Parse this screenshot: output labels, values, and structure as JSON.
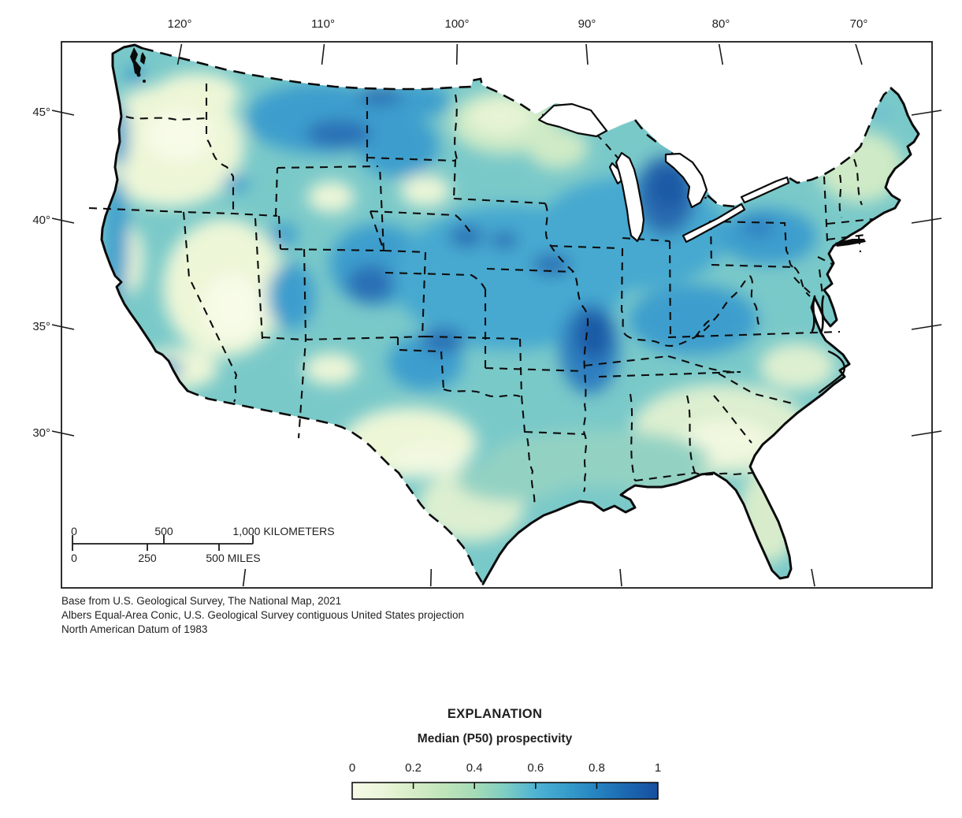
{
  "map": {
    "axis_top": {
      "labels": [
        "120°",
        "110°",
        "100°",
        "90°",
        "80°",
        "70°"
      ]
    },
    "axis_left": {
      "labels": [
        "45°",
        "40°",
        "35°",
        "30°"
      ]
    },
    "scale_bar": {
      "km": [
        "0",
        "500",
        "1,000 KILOMETERS"
      ],
      "miles": [
        "0",
        "250",
        "500 MILES"
      ]
    },
    "attribution": [
      "Base from U.S. Geological Survey, The National Map, 2021",
      "Albers Equal-Area Conic, U.S. Geological Survey contiguous United States projection",
      "North American Datum of 1983"
    ]
  },
  "legend": {
    "heading": "EXPLANATION",
    "subtitle": "Median (P50) prospectivity",
    "ticks": [
      "0",
      "0.2",
      "0.4",
      "0.6",
      "0.8",
      "1"
    ],
    "range": {
      "min": "0",
      "max": "1"
    },
    "colormap_stops": [
      {
        "t": 0.0,
        "color": "#f7fbe7"
      },
      {
        "t": 0.1,
        "color": "#eaf5d9"
      },
      {
        "t": 0.2,
        "color": "#d6edc6"
      },
      {
        "t": 0.3,
        "color": "#bfe4ba"
      },
      {
        "t": 0.4,
        "color": "#a5dbb7"
      },
      {
        "t": 0.5,
        "color": "#7ecdc2"
      },
      {
        "t": 0.6,
        "color": "#4eb3d3"
      },
      {
        "t": 0.7,
        "color": "#379dcb"
      },
      {
        "t": 0.8,
        "color": "#2583c0"
      },
      {
        "t": 0.9,
        "color": "#1c68b0"
      },
      {
        "t": 1.0,
        "color": "#174f9f"
      }
    ]
  }
}
